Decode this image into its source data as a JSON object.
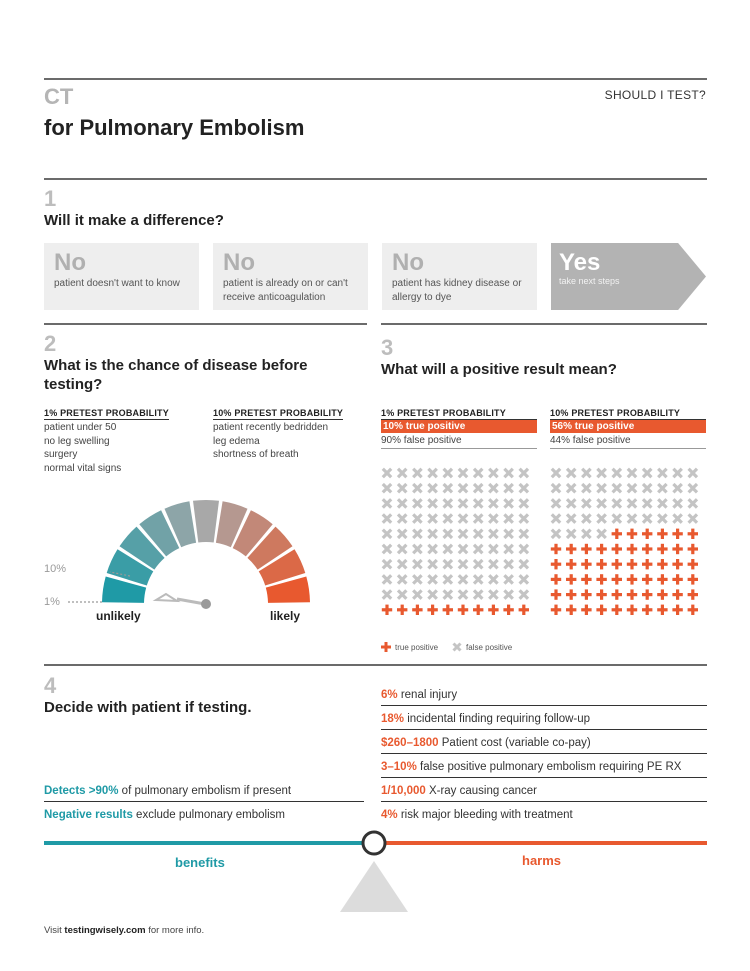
{
  "header": {
    "category": "CT",
    "title": "for Pulmonary Embolism",
    "tag": "SHOULD I TEST?"
  },
  "section1": {
    "number": "1",
    "heading": "Will it make a difference?",
    "cards": [
      {
        "big": "No",
        "small": "patient doesn't want to know"
      },
      {
        "big": "No",
        "small": "patient is already on or can't receive anticoagulation"
      },
      {
        "big": "No",
        "small": "patient has kidney disease or allergy to dye"
      },
      {
        "big": "Yes",
        "small": "take next steps"
      }
    ]
  },
  "section2": {
    "number": "2",
    "heading": "What is the chance of disease before testing?",
    "col1": {
      "title": "1% PRETEST PROBABILITY",
      "items": [
        "patient under 50",
        "no leg swelling",
        "surgery",
        "normal vital signs"
      ]
    },
    "col2": {
      "title": "10% PRETEST PROBABILITY",
      "items": [
        "patient recently bedridden",
        "leg edema",
        "shortness of breath"
      ]
    },
    "gauge": {
      "mark_high": "10%",
      "mark_low": "1%",
      "label_left": "unlikely",
      "label_right": "likely"
    }
  },
  "section3": {
    "number": "3",
    "heading": "What will a positive result mean?",
    "col1": {
      "title": "1% PRETEST PROBABILITY",
      "true_text": "10% true positive",
      "false_text": "90% false positive",
      "true_count": 10,
      "total": 100
    },
    "col2": {
      "title": "10% PRETEST PROBABILITY",
      "true_text": "56% true positive",
      "false_text": "44% false positive",
      "true_count": 56,
      "total": 100
    },
    "legend_true": "true positive",
    "legend_false": "false positive",
    "colors": {
      "true": "#e8592f",
      "false": "#c4c4c4"
    }
  },
  "section4": {
    "number": "4",
    "heading": "Decide with patient if testing.",
    "harms": [
      {
        "hl": "6%",
        "text": " renal injury"
      },
      {
        "hl": "18%",
        "text": " incidental finding requiring follow-up"
      },
      {
        "hl": "$260–1800",
        "text": " Patient cost (variable co-pay)"
      },
      {
        "hl": "3–10%",
        "text": " false positive pulmonary embolism requiring PE RX"
      },
      {
        "hl": "1/10,000",
        "text": " X-ray causing cancer"
      },
      {
        "hl": "4%",
        "text": " risk major bleeding with treatment"
      }
    ],
    "benefits": [
      {
        "hl": "Detects >90%",
        "text": " of pulmonary embolism if present"
      },
      {
        "hl": "Negative results",
        "text": " exclude pulmonary embolism"
      }
    ],
    "label_benefits": "benefits",
    "label_harms": "harms",
    "colors": {
      "benefit": "#1f9aa6",
      "harm": "#e8592f"
    }
  },
  "footer": {
    "prefix": "Visit ",
    "link": "testingwisely.com",
    "suffix": " for more info."
  }
}
